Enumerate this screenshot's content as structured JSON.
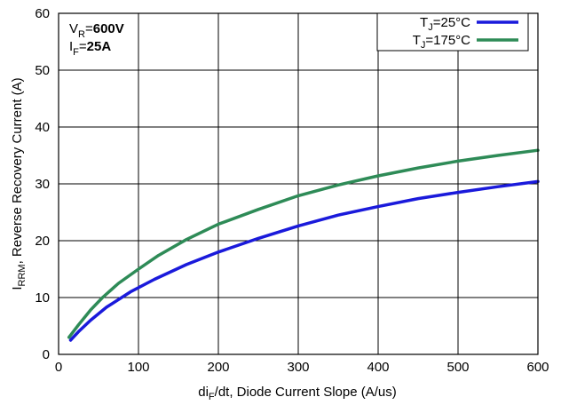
{
  "chart_data": {
    "type": "line",
    "xlabel_parts": {
      "pre": "di",
      "sub": "F",
      "post": "/dt, Diode Current Slope (A/us)"
    },
    "ylabel_parts": {
      "pre": "I",
      "sub": "RRM",
      "post": ", Reverse Recovery Current (A)"
    },
    "xlim": [
      0,
      600
    ],
    "ylim": [
      0,
      60
    ],
    "x_ticks": [
      "0",
      "100",
      "200",
      "300",
      "400",
      "500",
      "600"
    ],
    "y_ticks": [
      "0",
      "10",
      "20",
      "30",
      "40",
      "50",
      "60"
    ],
    "grid": true,
    "legend_position": "top-right",
    "conditions": [
      {
        "pre": "V",
        "sub": "R",
        "eq": "=",
        "val": "600V"
      },
      {
        "pre": "I",
        "sub": "F",
        "eq": "=",
        "val": "25A"
      }
    ],
    "series": [
      {
        "name_parts": {
          "pre": "T",
          "sub": "J",
          "post": "=25°C"
        },
        "color": "#1a1adb",
        "x": [
          15,
          25,
          40,
          60,
          90,
          120,
          160,
          200,
          250,
          300,
          350,
          400,
          450,
          500,
          550,
          600
        ],
        "y": [
          2.5,
          4.0,
          6.0,
          8.3,
          11.0,
          13.2,
          15.8,
          18.0,
          20.4,
          22.6,
          24.5,
          26.0,
          27.4,
          28.5,
          29.5,
          30.4
        ]
      },
      {
        "name_parts": {
          "pre": "T",
          "sub": "J",
          "post": "=175°C"
        },
        "color": "#2e8b57",
        "x": [
          13,
          25,
          40,
          55,
          75,
          100,
          125,
          160,
          200,
          250,
          300,
          350,
          400,
          450,
          500,
          550,
          600
        ],
        "y": [
          3.0,
          5.2,
          7.8,
          10.0,
          12.5,
          15.0,
          17.4,
          20.2,
          22.9,
          25.5,
          27.9,
          29.8,
          31.4,
          32.8,
          34.0,
          35.0,
          35.9
        ]
      }
    ]
  }
}
